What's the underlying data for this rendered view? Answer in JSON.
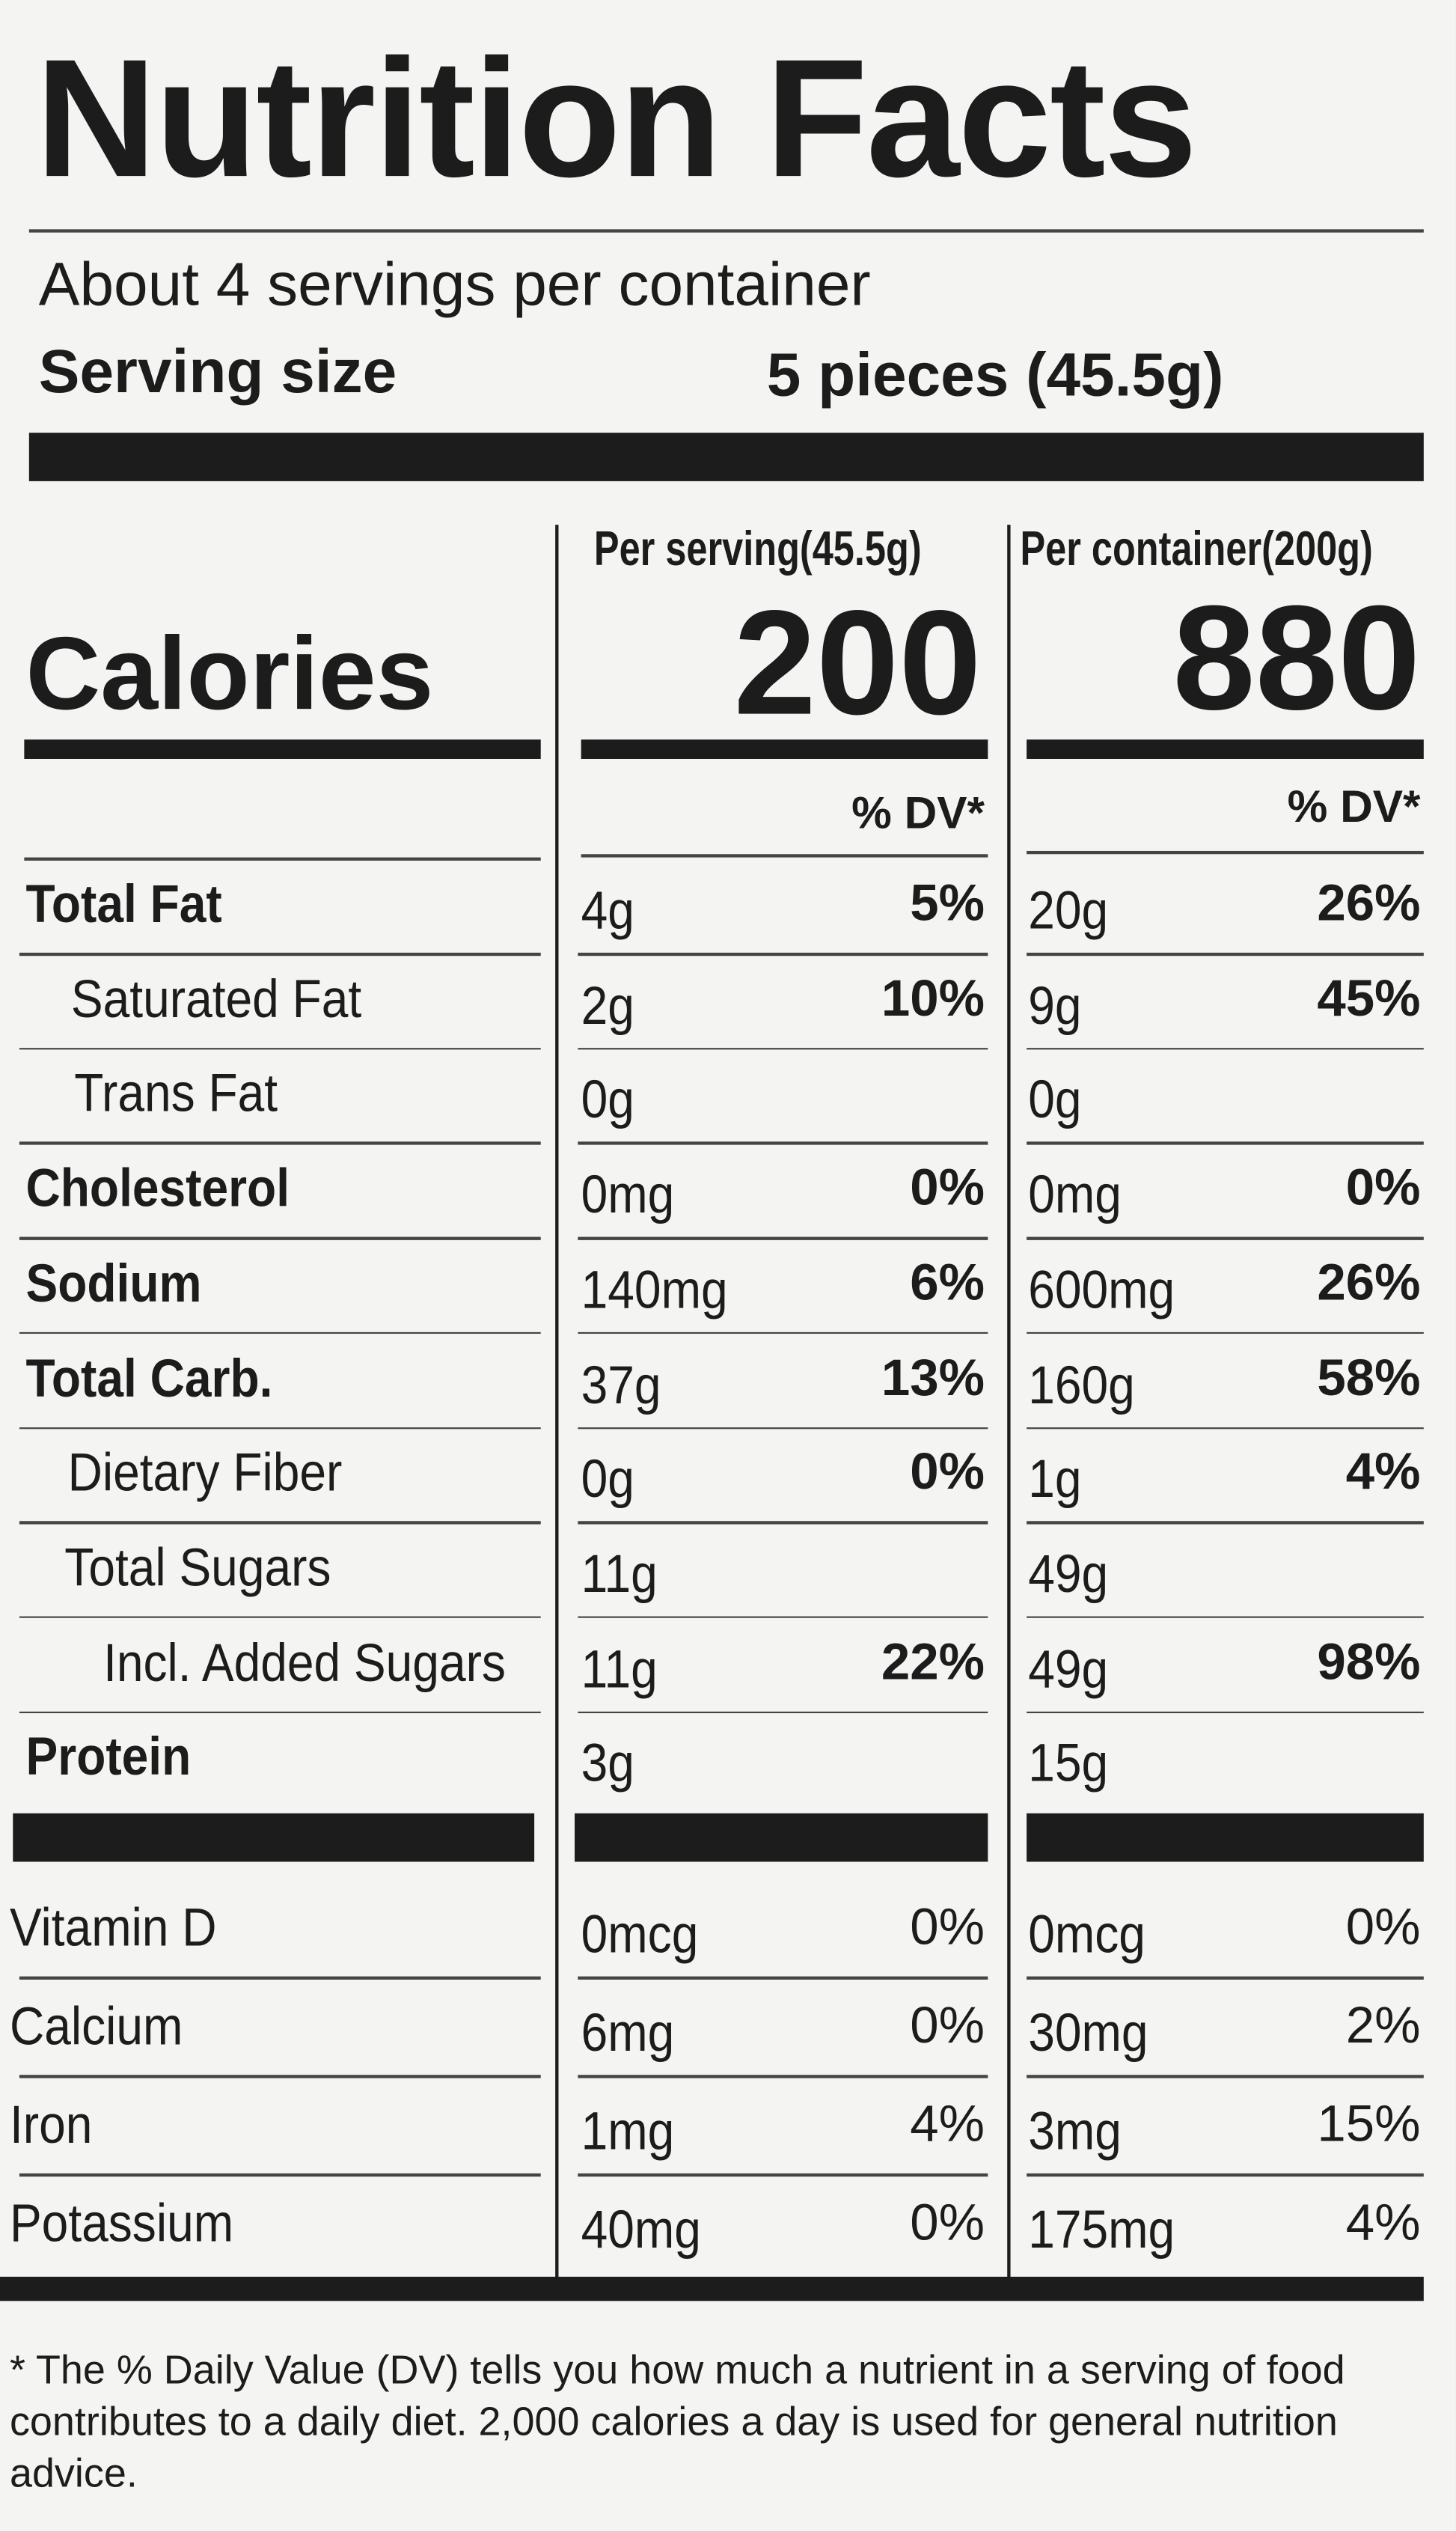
{
  "header": {
    "title": "Nutrition Facts",
    "servings": "About 4 servings per container",
    "serving_size_label": "Serving size",
    "serving_size_value": "5 pieces (45.5g)"
  },
  "columns": {
    "per_serving": "Per serving(45.5g)",
    "per_container": "Per container(200g)"
  },
  "calories": {
    "label": "Calories",
    "per_serving": "200",
    "per_container": "880"
  },
  "dv_header": {
    "per_serving": "% DV*",
    "per_container": "% DV*"
  },
  "nutrients": [
    [
      "Total Fat",
      "4g",
      "5%",
      "20g",
      "26%"
    ],
    [
      "Saturated Fat",
      "2g",
      "10%",
      "9g",
      "45%"
    ],
    [
      "Trans Fat",
      "0g",
      null,
      "0g",
      null
    ],
    [
      "Cholesterol",
      "0mg",
      "0%",
      "0mg",
      "0%"
    ],
    [
      "Sodium",
      "140mg",
      "6%",
      "600mg",
      "26%"
    ],
    [
      "Total Carb.",
      "37g",
      "13%",
      "160g",
      "58%"
    ],
    [
      "Dietary Fiber",
      "0g",
      "0%",
      "1g",
      "4%"
    ],
    [
      "Total Sugars",
      "11g",
      null,
      "49g",
      null
    ],
    [
      "Incl. Added Sugars",
      "11g",
      "22%",
      "49g",
      "98%"
    ],
    [
      "Protein",
      "3g",
      null,
      "15g",
      null
    ]
  ],
  "vitamins": [
    [
      "Vitamin D",
      "0mcg",
      "0%",
      "0mcg",
      "0%"
    ],
    [
      "Calcium",
      "6mg",
      "0%",
      "30mg",
      "2%"
    ],
    [
      "Iron",
      "1mg",
      "4%",
      "3mg",
      "15%"
    ],
    [
      "Potassium",
      "40mg",
      "0%",
      "175mg",
      "4%"
    ]
  ],
  "footnote": "* The % Daily Value (DV) tells you how much a nutrient in a serving of food contributes to a daily diet. 2,000 calories a day is used for general nutrition advice."
}
